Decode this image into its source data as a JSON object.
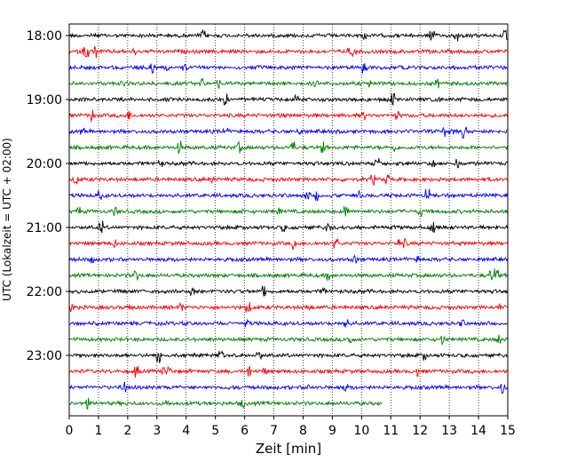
{
  "chart_data": {
    "type": "line",
    "subtype": "helicorder",
    "title": "",
    "xlabel": "Zeit  [min]",
    "ylabel": "UTC (Lokalzeit = UTC + 02:00)",
    "xlim": [
      0,
      15
    ],
    "xticks": [
      "0",
      "1",
      "2",
      "3",
      "4",
      "5",
      "6",
      "7",
      "8",
      "9",
      "10",
      "11",
      "12",
      "13",
      "14",
      "15"
    ],
    "ytick_labels": [
      "18:00",
      "19:00",
      "20:00",
      "21:00",
      "22:00",
      "23:00"
    ],
    "grid": "vertical dotted lines at each minute",
    "trace_interval_minutes": 15,
    "trace_colors": [
      "#000000",
      "#ff0000",
      "#0000ff",
      "#008000"
    ],
    "series": [
      {
        "start": "18:00",
        "color": "#000000",
        "end_minute": 15
      },
      {
        "start": "18:15",
        "color": "#ff0000",
        "end_minute": 15
      },
      {
        "start": "18:30",
        "color": "#0000ff",
        "end_minute": 15
      },
      {
        "start": "18:45",
        "color": "#008000",
        "end_minute": 15
      },
      {
        "start": "19:00",
        "color": "#000000",
        "end_minute": 15
      },
      {
        "start": "19:15",
        "color": "#ff0000",
        "end_minute": 15
      },
      {
        "start": "19:30",
        "color": "#0000ff",
        "end_minute": 15
      },
      {
        "start": "19:45",
        "color": "#008000",
        "end_minute": 15
      },
      {
        "start": "20:00",
        "color": "#000000",
        "end_minute": 15
      },
      {
        "start": "20:15",
        "color": "#ff0000",
        "end_minute": 15
      },
      {
        "start": "20:30",
        "color": "#0000ff",
        "end_minute": 15
      },
      {
        "start": "20:45",
        "color": "#008000",
        "end_minute": 15
      },
      {
        "start": "21:00",
        "color": "#000000",
        "end_minute": 15
      },
      {
        "start": "21:15",
        "color": "#ff0000",
        "end_minute": 15
      },
      {
        "start": "21:30",
        "color": "#0000ff",
        "end_minute": 15
      },
      {
        "start": "21:45",
        "color": "#008000",
        "end_minute": 15
      },
      {
        "start": "22:00",
        "color": "#000000",
        "end_minute": 15
      },
      {
        "start": "22:15",
        "color": "#ff0000",
        "end_minute": 15
      },
      {
        "start": "22:30",
        "color": "#0000ff",
        "end_minute": 15
      },
      {
        "start": "22:45",
        "color": "#008000",
        "end_minute": 15
      },
      {
        "start": "23:00",
        "color": "#000000",
        "end_minute": 15
      },
      {
        "start": "23:15",
        "color": "#ff0000",
        "end_minute": 15
      },
      {
        "start": "23:30",
        "color": "#0000ff",
        "end_minute": 15
      },
      {
        "start": "23:45",
        "color": "#008000",
        "end_minute": 10.7
      }
    ]
  }
}
